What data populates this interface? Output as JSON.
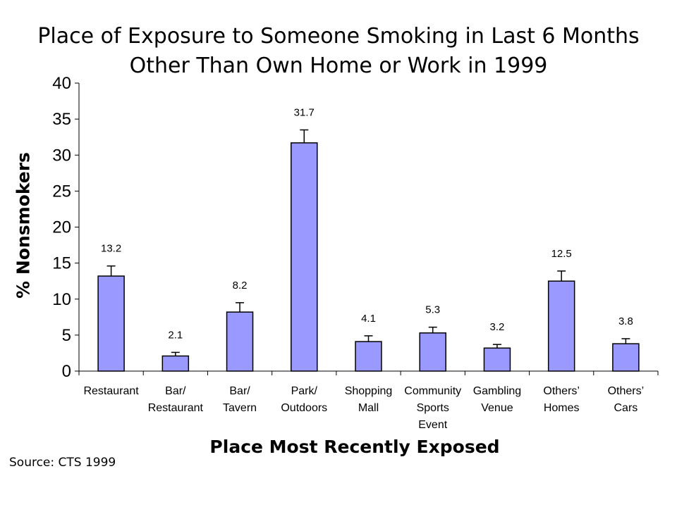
{
  "chart_data": {
    "type": "bar",
    "title": [
      "Place of Exposure to Someone Smoking in Last 6 Months",
      "Other Than Own Home or Work in 1999"
    ],
    "xlabel": "Place Most Recently Exposed",
    "ylabel": "% Nonsmokers",
    "categories": [
      [
        "Restaurant"
      ],
      [
        "Bar/",
        "Restaurant"
      ],
      [
        "Bar/",
        "Tavern"
      ],
      [
        "Park/",
        "Outdoors"
      ],
      [
        "Shopping",
        "Mall"
      ],
      [
        "Community",
        "Sports",
        "Event"
      ],
      [
        "Gambling",
        "Venue"
      ],
      [
        "Others’",
        "Homes"
      ],
      [
        "Others’",
        "Cars"
      ]
    ],
    "values": [
      13.2,
      2.1,
      8.2,
      31.7,
      4.1,
      5.3,
      3.2,
      12.5,
      3.8
    ],
    "value_labels": [
      "13.2",
      "2.1",
      "8.2",
      "31.7",
      "4.1",
      "5.3",
      "3.2",
      "12.5",
      "3.8"
    ],
    "error_upper": [
      14.6,
      2.6,
      9.5,
      33.5,
      4.9,
      6.1,
      3.7,
      13.9,
      4.5
    ],
    "ylim": [
      0,
      40
    ],
    "yticks": [
      0,
      5,
      10,
      15,
      20,
      25,
      30,
      35,
      40
    ],
    "grid": false,
    "legend": "none",
    "bar_color": "#9999ff",
    "source": "Source:  CTS 1999"
  }
}
